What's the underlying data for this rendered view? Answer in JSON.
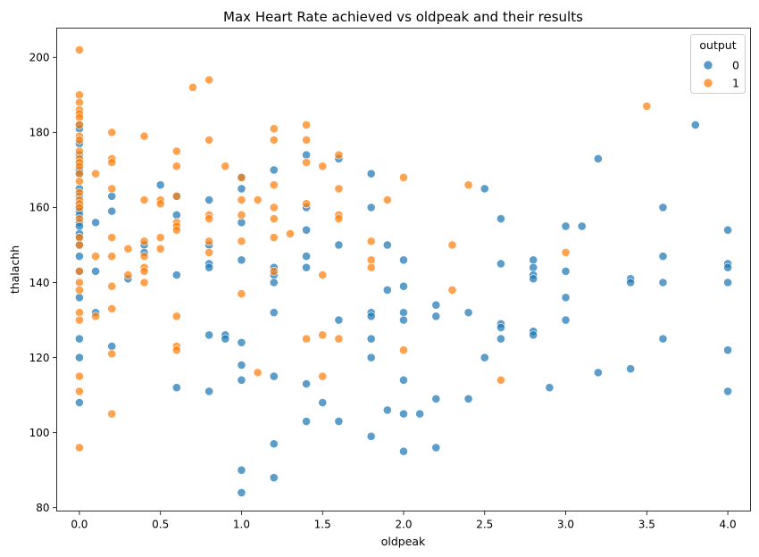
{
  "chart_data": {
    "type": "scatter",
    "title": "Max Heart Rate achieved vs oldpeak and their results",
    "xlabel": "oldpeak",
    "ylabel": "thalachh",
    "xlim": [
      -0.14,
      4.14
    ],
    "ylim": [
      79.1,
      207.8
    ],
    "xticks": [
      0.0,
      0.5,
      1.0,
      1.5,
      2.0,
      2.5,
      3.0,
      3.5,
      4.0
    ],
    "xtick_labels": [
      "0.0",
      "0.5",
      "1.0",
      "1.5",
      "2.0",
      "2.5",
      "3.0",
      "3.5",
      "4.0"
    ],
    "yticks": [
      80,
      100,
      120,
      140,
      160,
      180,
      200
    ],
    "ytick_labels": [
      "80",
      "100",
      "120",
      "140",
      "160",
      "180",
      "200"
    ],
    "grid": false,
    "legend": {
      "title": "output",
      "placement": "top-right"
    },
    "series": [
      {
        "name": "0",
        "color": "#1f77b4",
        "points": [
          [
            0.0,
            182
          ],
          [
            0.0,
            181
          ],
          [
            0.0,
            177
          ],
          [
            0.0,
            174
          ],
          [
            0.0,
            172
          ],
          [
            0.0,
            170
          ],
          [
            0.0,
            169
          ],
          [
            0.0,
            165
          ],
          [
            0.0,
            163
          ],
          [
            0.0,
            161
          ],
          [
            0.0,
            160
          ],
          [
            0.0,
            159
          ],
          [
            0.0,
            158
          ],
          [
            0.0,
            156
          ],
          [
            0.0,
            155
          ],
          [
            0.0,
            153
          ],
          [
            0.0,
            152
          ],
          [
            0.0,
            150
          ],
          [
            0.0,
            147
          ],
          [
            0.0,
            143
          ],
          [
            0.0,
            136
          ],
          [
            0.0,
            125
          ],
          [
            0.0,
            120
          ],
          [
            0.0,
            108
          ],
          [
            0.1,
            156
          ],
          [
            0.1,
            143
          ],
          [
            0.1,
            132
          ],
          [
            0.2,
            163
          ],
          [
            0.2,
            159
          ],
          [
            0.2,
            123
          ],
          [
            0.3,
            141
          ],
          [
            0.4,
            150
          ],
          [
            0.4,
            148
          ],
          [
            0.5,
            166
          ],
          [
            0.6,
            163
          ],
          [
            0.6,
            158
          ],
          [
            0.6,
            142
          ],
          [
            0.6,
            112
          ],
          [
            0.8,
            162
          ],
          [
            0.8,
            150
          ],
          [
            0.8,
            145
          ],
          [
            0.8,
            144
          ],
          [
            0.8,
            126
          ],
          [
            0.8,
            111
          ],
          [
            0.9,
            126
          ],
          [
            0.9,
            125
          ],
          [
            1.0,
            168
          ],
          [
            1.0,
            165
          ],
          [
            1.0,
            156
          ],
          [
            1.0,
            146
          ],
          [
            1.0,
            124
          ],
          [
            1.0,
            118
          ],
          [
            1.0,
            114
          ],
          [
            1.0,
            90
          ],
          [
            1.0,
            84
          ],
          [
            1.2,
            170
          ],
          [
            1.2,
            144
          ],
          [
            1.2,
            142
          ],
          [
            1.2,
            140
          ],
          [
            1.2,
            132
          ],
          [
            1.2,
            115
          ],
          [
            1.2,
            97
          ],
          [
            1.2,
            88
          ],
          [
            1.4,
            174
          ],
          [
            1.4,
            160
          ],
          [
            1.4,
            154
          ],
          [
            1.4,
            147
          ],
          [
            1.4,
            144
          ],
          [
            1.4,
            113
          ],
          [
            1.4,
            103
          ],
          [
            1.5,
            108
          ],
          [
            1.6,
            173
          ],
          [
            1.6,
            150
          ],
          [
            1.6,
            130
          ],
          [
            1.6,
            103
          ],
          [
            1.8,
            169
          ],
          [
            1.8,
            160
          ],
          [
            1.8,
            132
          ],
          [
            1.8,
            131
          ],
          [
            1.8,
            125
          ],
          [
            1.8,
            120
          ],
          [
            1.8,
            99
          ],
          [
            1.9,
            150
          ],
          [
            1.9,
            138
          ],
          [
            1.9,
            106
          ],
          [
            2.0,
            146
          ],
          [
            2.0,
            139
          ],
          [
            2.0,
            132
          ],
          [
            2.0,
            130
          ],
          [
            2.0,
            114
          ],
          [
            2.0,
            105
          ],
          [
            2.0,
            95
          ],
          [
            2.1,
            105
          ],
          [
            2.2,
            134
          ],
          [
            2.2,
            131
          ],
          [
            2.2,
            109
          ],
          [
            2.2,
            96
          ],
          [
            2.4,
            132
          ],
          [
            2.4,
            109
          ],
          [
            2.5,
            165
          ],
          [
            2.5,
            120
          ],
          [
            2.6,
            157
          ],
          [
            2.6,
            145
          ],
          [
            2.6,
            129
          ],
          [
            2.6,
            128
          ],
          [
            2.6,
            125
          ],
          [
            2.8,
            146
          ],
          [
            2.8,
            144
          ],
          [
            2.8,
            142
          ],
          [
            2.8,
            141
          ],
          [
            2.8,
            127
          ],
          [
            2.8,
            126
          ],
          [
            2.9,
            112
          ],
          [
            3.0,
            155
          ],
          [
            3.0,
            143
          ],
          [
            3.0,
            136
          ],
          [
            3.0,
            130
          ],
          [
            3.1,
            155
          ],
          [
            3.2,
            173
          ],
          [
            3.2,
            116
          ],
          [
            3.4,
            141
          ],
          [
            3.4,
            140
          ],
          [
            3.4,
            117
          ],
          [
            3.6,
            160
          ],
          [
            3.6,
            147
          ],
          [
            3.6,
            140
          ],
          [
            3.6,
            125
          ],
          [
            3.8,
            182
          ],
          [
            4.0,
            154
          ],
          [
            4.0,
            145
          ],
          [
            4.0,
            144
          ],
          [
            4.0,
            140
          ],
          [
            4.0,
            122
          ],
          [
            4.0,
            111
          ]
        ]
      },
      {
        "name": "1",
        "color": "#ff7f0e",
        "points": [
          [
            0.0,
            202
          ],
          [
            0.0,
            190
          ],
          [
            0.0,
            188
          ],
          [
            0.0,
            186
          ],
          [
            0.0,
            185
          ],
          [
            0.0,
            184
          ],
          [
            0.0,
            182
          ],
          [
            0.0,
            179
          ],
          [
            0.0,
            178
          ],
          [
            0.0,
            175
          ],
          [
            0.0,
            173
          ],
          [
            0.0,
            172
          ],
          [
            0.0,
            171
          ],
          [
            0.0,
            169
          ],
          [
            0.0,
            167
          ],
          [
            0.0,
            164
          ],
          [
            0.0,
            162
          ],
          [
            0.0,
            161
          ],
          [
            0.0,
            160
          ],
          [
            0.0,
            157
          ],
          [
            0.0,
            152
          ],
          [
            0.0,
            150
          ],
          [
            0.0,
            143
          ],
          [
            0.0,
            140
          ],
          [
            0.0,
            138
          ],
          [
            0.0,
            132
          ],
          [
            0.0,
            130
          ],
          [
            0.0,
            115
          ],
          [
            0.0,
            111
          ],
          [
            0.0,
            96
          ],
          [
            0.1,
            169
          ],
          [
            0.1,
            147
          ],
          [
            0.1,
            131
          ],
          [
            0.2,
            180
          ],
          [
            0.2,
            173
          ],
          [
            0.2,
            172
          ],
          [
            0.2,
            165
          ],
          [
            0.2,
            152
          ],
          [
            0.2,
            147
          ],
          [
            0.2,
            139
          ],
          [
            0.2,
            133
          ],
          [
            0.2,
            121
          ],
          [
            0.2,
            105
          ],
          [
            0.3,
            149
          ],
          [
            0.3,
            142
          ],
          [
            0.4,
            179
          ],
          [
            0.4,
            162
          ],
          [
            0.4,
            151
          ],
          [
            0.4,
            147
          ],
          [
            0.4,
            144
          ],
          [
            0.4,
            143
          ],
          [
            0.4,
            140
          ],
          [
            0.5,
            162
          ],
          [
            0.5,
            161
          ],
          [
            0.5,
            152
          ],
          [
            0.5,
            149
          ],
          [
            0.6,
            175
          ],
          [
            0.6,
            171
          ],
          [
            0.6,
            163
          ],
          [
            0.6,
            156
          ],
          [
            0.6,
            155
          ],
          [
            0.6,
            154
          ],
          [
            0.6,
            131
          ],
          [
            0.6,
            123
          ],
          [
            0.6,
            122
          ],
          [
            0.7,
            192
          ],
          [
            0.8,
            194
          ],
          [
            0.8,
            178
          ],
          [
            0.8,
            158
          ],
          [
            0.8,
            157
          ],
          [
            0.8,
            151
          ],
          [
            0.8,
            148
          ],
          [
            0.9,
            171
          ],
          [
            1.0,
            168
          ],
          [
            1.0,
            162
          ],
          [
            1.0,
            158
          ],
          [
            1.0,
            151
          ],
          [
            1.0,
            137
          ],
          [
            1.1,
            162
          ],
          [
            1.1,
            116
          ],
          [
            1.2,
            181
          ],
          [
            1.2,
            178
          ],
          [
            1.2,
            166
          ],
          [
            1.2,
            160
          ],
          [
            1.2,
            157
          ],
          [
            1.2,
            152
          ],
          [
            1.2,
            143
          ],
          [
            1.3,
            153
          ],
          [
            1.4,
            182
          ],
          [
            1.4,
            178
          ],
          [
            1.4,
            172
          ],
          [
            1.4,
            161
          ],
          [
            1.4,
            125
          ],
          [
            1.5,
            171
          ],
          [
            1.5,
            142
          ],
          [
            1.5,
            126
          ],
          [
            1.5,
            115
          ],
          [
            1.6,
            174
          ],
          [
            1.6,
            165
          ],
          [
            1.6,
            158
          ],
          [
            1.6,
            157
          ],
          [
            1.6,
            125
          ],
          [
            1.8,
            151
          ],
          [
            1.8,
            146
          ],
          [
            1.8,
            144
          ],
          [
            1.9,
            162
          ],
          [
            2.0,
            168
          ],
          [
            2.0,
            122
          ],
          [
            2.3,
            150
          ],
          [
            2.3,
            138
          ],
          [
            2.4,
            166
          ],
          [
            2.6,
            114
          ],
          [
            3.0,
            148
          ],
          [
            3.5,
            187
          ]
        ]
      }
    ]
  }
}
